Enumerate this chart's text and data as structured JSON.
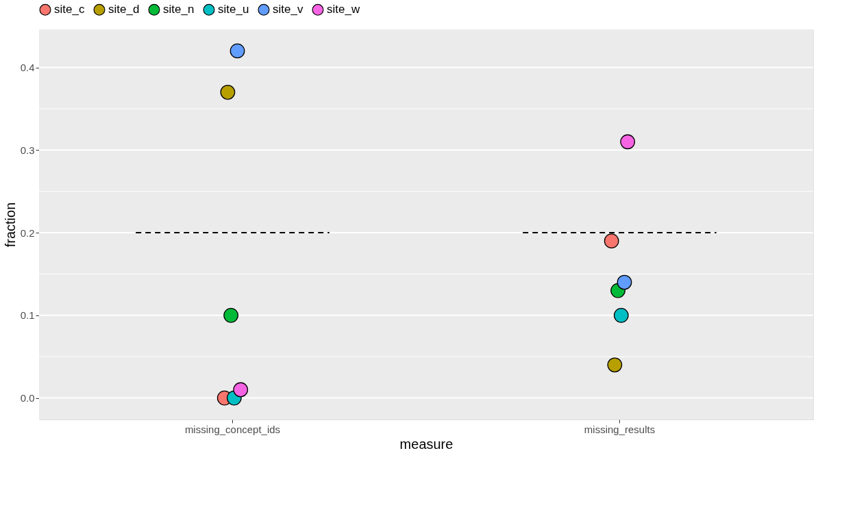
{
  "chart_data": {
    "type": "scatter",
    "xlabel": "measure",
    "ylabel": "fraction",
    "categories": [
      "missing_concept_ids",
      "missing_results"
    ],
    "series": [
      {
        "name": "site_c",
        "color": "#f8766d",
        "values": [
          0.0,
          0.19
        ]
      },
      {
        "name": "site_d",
        "color": "#b79f00",
        "values": [
          0.37,
          0.04
        ]
      },
      {
        "name": "site_n",
        "color": "#00ba38",
        "values": [
          0.1,
          0.13
        ]
      },
      {
        "name": "site_u",
        "color": "#00bfc4",
        "values": [
          0.0,
          0.1
        ]
      },
      {
        "name": "site_v",
        "color": "#619cff",
        "values": [
          0.42,
          0.14
        ]
      },
      {
        "name": "site_w",
        "color": "#f564e3",
        "values": [
          0.01,
          0.31
        ]
      }
    ],
    "ylim": [
      -0.026,
      0.446
    ],
    "yticks": [
      {
        "value": 0,
        "label": "0.0"
      },
      0.1,
      0.2,
      0.3,
      0.4
    ],
    "ref_lines": [
      {
        "axis": "y",
        "value": 0.2,
        "color": "#000000",
        "line_style": "dashed"
      }
    ],
    "grid": true,
    "legend": "top",
    "marker": "circle"
  }
}
